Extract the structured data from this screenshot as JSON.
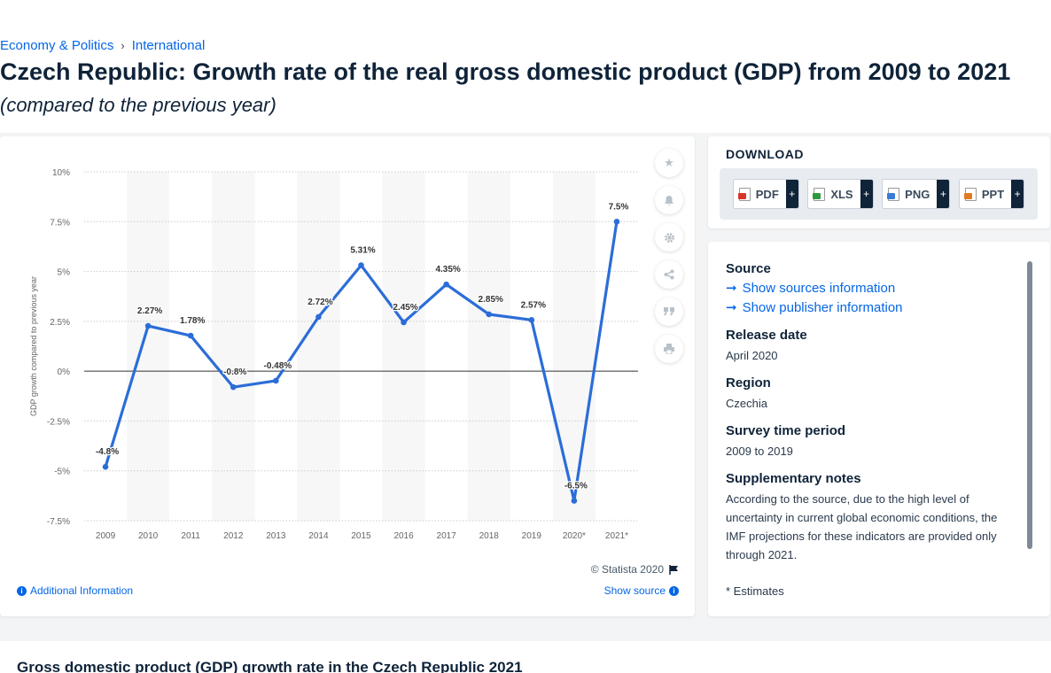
{
  "breadcrumb": {
    "first": "Economy & Politics",
    "separator": "›",
    "second": "International"
  },
  "page_title": "Czech Republic: Growth rate of the real gross domestic product (GDP) from 2009 to 2021",
  "page_subtitle": "(compared to the previous year)",
  "chart_footer": {
    "copyright": "© Statista 2020",
    "additional_info": "Additional Information",
    "show_source": "Show source"
  },
  "download": {
    "title": "DOWNLOAD",
    "buttons": [
      {
        "label": "PDF",
        "icon": "pdf-file-icon",
        "color": "#d9342b"
      },
      {
        "label": "XLS",
        "icon": "xls-file-icon",
        "color": "#2e9a3d"
      },
      {
        "label": "PNG",
        "icon": "png-file-icon",
        "color": "#3a7bd5"
      },
      {
        "label": "PPT",
        "icon": "ppt-file-icon",
        "color": "#e07b22"
      }
    ],
    "plus": "+"
  },
  "info": {
    "source_heading": "Source",
    "show_sources": "Show sources information",
    "show_publisher": "Show publisher information",
    "release_heading": "Release date",
    "release_value": "April 2020",
    "region_heading": "Region",
    "region_value": "Czechia",
    "survey_heading": "Survey time period",
    "survey_value": "2009 to 2019",
    "notes_heading": "Supplementary notes",
    "notes_value": "According to the source, due to the high level of uncertainty in current global economic conditions, the IMF projections for these indicators are provided only through 2021.",
    "estimate_note": "* Estimates"
  },
  "bottom_title": "Gross domestic product (GDP) growth rate in the Czech Republic 2021",
  "colors": {
    "line": "#2b6dd8",
    "accent": "#0666e5",
    "band": "#f7f7f7"
  },
  "chart_data": {
    "type": "line",
    "title": "",
    "xlabel": "",
    "ylabel": "GDP growth compared to previous year",
    "categories": [
      "2009",
      "2010",
      "2011",
      "2012",
      "2013",
      "2014",
      "2015",
      "2016",
      "2017",
      "2018",
      "2019",
      "2020*",
      "2021*"
    ],
    "series": [
      {
        "values": [
          -4.8,
          2.27,
          1.78,
          -0.8,
          -0.48,
          2.72,
          5.31,
          2.45,
          4.35,
          2.85,
          2.57,
          -6.5,
          7.5
        ]
      }
    ],
    "data_labels": [
      "-4.8%",
      "2.27%",
      "1.78%",
      "-0.8%",
      "-0.48%",
      "2.72%",
      "5.31%",
      "2.45%",
      "4.35%",
      "2.85%",
      "2.57%",
      "-6.5%",
      "7.5%"
    ],
    "yticks": [
      10,
      7.5,
      5,
      2.5,
      0,
      -2.5,
      -5,
      -7.5
    ],
    "ytick_labels": [
      "10%",
      "7.5%",
      "5%",
      "2.5%",
      "0%",
      "-2.5%",
      "-5%",
      "-7.5%"
    ],
    "ylim": [
      -7.5,
      10
    ],
    "grid": true,
    "legend": "none"
  }
}
